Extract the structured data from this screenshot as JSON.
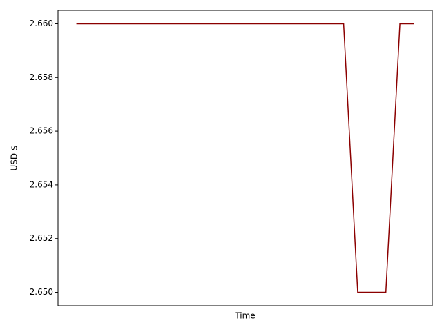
{
  "chart_data": {
    "type": "line",
    "x_label": "Time",
    "y_label": "USD $",
    "categories": [
      null,
      null,
      null,
      null,
      null,
      null,
      null,
      null,
      null,
      null,
      null,
      null,
      null,
      null,
      null,
      null,
      null,
      null,
      null,
      null,
      null,
      null,
      null,
      null,
      null
    ],
    "series": [
      {
        "color": "#8b0000",
        "values": [
          2.66,
          2.66,
          2.66,
          2.66,
          2.66,
          2.66,
          2.66,
          2.66,
          2.66,
          2.66,
          2.66,
          2.66,
          2.66,
          2.66,
          2.66,
          2.66,
          2.66,
          2.66,
          2.66,
          2.66,
          2.65,
          2.65,
          2.65,
          2.66,
          2.66
        ]
      }
    ],
    "ylim": [
      2.6495,
      2.6605
    ],
    "yticks": [
      {
        "value": 2.65,
        "label": "2.650"
      },
      {
        "value": 2.652,
        "label": "2.652"
      },
      {
        "value": 2.654,
        "label": "2.654"
      },
      {
        "value": 2.656,
        "label": "2.656"
      },
      {
        "value": 2.658,
        "label": "2.658"
      },
      {
        "value": 2.66,
        "label": "2.660"
      }
    ],
    "grid": false
  }
}
